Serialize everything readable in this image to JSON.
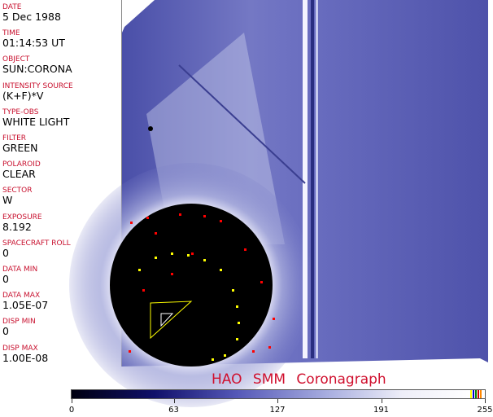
{
  "fields": [
    {
      "label": "DATE",
      "value": "5 Dec 1988"
    },
    {
      "label": "TIME",
      "value": "01:14:53 UT"
    },
    {
      "label": "OBJECT",
      "value": "SUN:CORONA"
    },
    {
      "label": "INTENSITY SOURCE",
      "value": "(K+F)*V"
    },
    {
      "label": "TYPE-OBS",
      "value": "WHITE LIGHT"
    },
    {
      "label": "FILTER",
      "value": "GREEN"
    },
    {
      "label": "POLAROID",
      "value": "CLEAR"
    },
    {
      "label": "SECTOR",
      "value": "W"
    },
    {
      "label": "EXPOSURE",
      "value": "8.192"
    },
    {
      "label": "SPACECRAFT ROLL",
      "value": "0"
    },
    {
      "label": "DATA MIN",
      "value": "0"
    },
    {
      "label": "DATA MAX",
      "value": "1.05E-07"
    },
    {
      "label": "DISP MIN",
      "value": "0"
    },
    {
      "label": "DISP MAX",
      "value": "1.00E-08"
    }
  ],
  "title": "HAO   SMM Coronagraph",
  "colorbar": {
    "ticks": [
      "0",
      "63",
      "127",
      "191",
      "255"
    ],
    "min": 0,
    "max": 255,
    "colormap": [
      "#000010",
      "#10106a",
      "#5558b8",
      "#a8aee0",
      "#ffffff"
    ]
  },
  "colors": {
    "label": "#c8102e",
    "title": "#d0102e"
  }
}
